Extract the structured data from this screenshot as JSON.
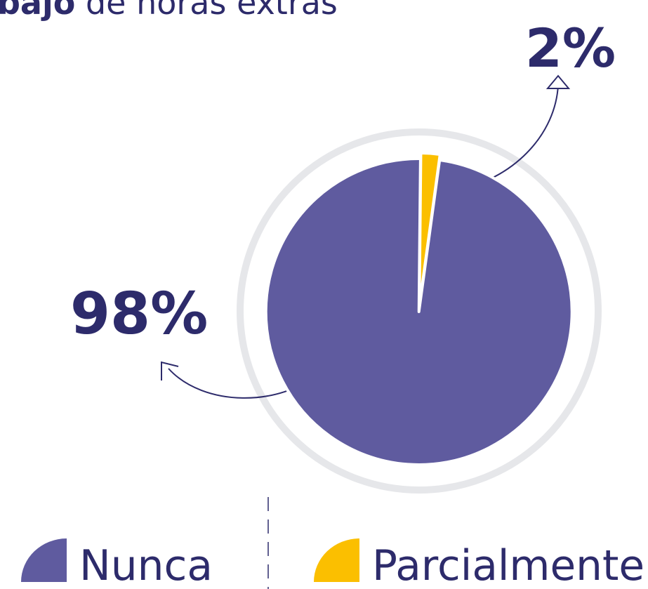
{
  "chart_data": {
    "type": "pie",
    "title": {
      "bold": "bajo",
      "rest": "de horas extras"
    },
    "categories": [
      "Nunca",
      "Parcialmente"
    ],
    "values": [
      98,
      2
    ],
    "value_labels": [
      "98%",
      "2%"
    ],
    "colors": [
      "#5f5b9f",
      "#fbbf00"
    ]
  }
}
